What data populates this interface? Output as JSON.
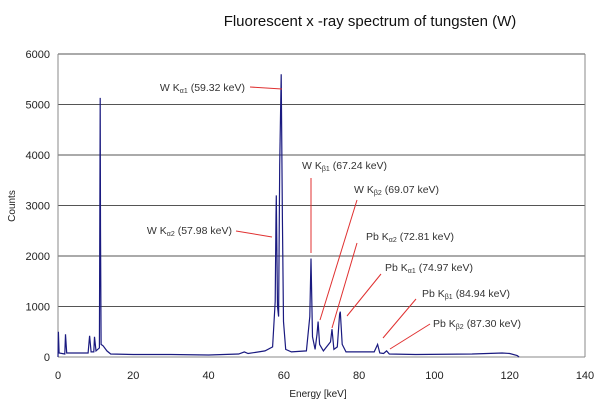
{
  "chart_data": {
    "type": "line",
    "title": "Fluorescent x -ray spectrum of tungsten (W)",
    "xlabel": "Energy [keV]",
    "ylabel": "Counts",
    "xlim": [
      0,
      140
    ],
    "ylim": [
      0,
      6000
    ],
    "xticks": [
      "0",
      "20",
      "40",
      "60",
      "80",
      "100",
      "120",
      "140"
    ],
    "yticks": [
      "0",
      "1000",
      "2000",
      "3000",
      "4000",
      "5000",
      "6000"
    ],
    "grid": "horizontal",
    "line_color": "#1a1a80",
    "annotation_color": "#e03030",
    "series": [
      {
        "x": [
          0,
          0.1,
          0.3,
          1.8,
          2.0,
          2.3,
          8.0,
          8.4,
          8.8,
          9.5,
          9.7,
          10.1,
          11.0,
          11.2,
          11.3,
          11.45,
          12,
          13,
          14,
          20,
          30,
          40,
          48,
          49.5,
          50.5,
          55,
          57,
          57.7,
          57.9,
          58.0,
          58.3,
          58.6,
          58.9,
          59.3,
          59.6,
          59.9,
          60.5,
          62,
          66,
          66.9,
          67.2,
          67.6,
          68.3,
          68.8,
          69.1,
          69.5,
          70.5,
          72.4,
          72.8,
          73.3,
          74.2,
          74.8,
          75.0,
          75.5,
          76.5,
          84,
          84.9,
          85.5,
          86.5,
          87.3,
          88,
          95,
          110,
          118,
          120,
          122,
          122.5
        ],
        "y": [
          0,
          500,
          80,
          60,
          450,
          80,
          80,
          420,
          100,
          100,
          400,
          120,
          180,
          5130,
          2550,
          250,
          220,
          120,
          60,
          50,
          50,
          40,
          60,
          100,
          70,
          120,
          200,
          1100,
          2800,
          3200,
          1000,
          800,
          3800,
          5600,
          2750,
          700,
          150,
          100,
          120,
          800,
          1950,
          400,
          150,
          450,
          700,
          250,
          120,
          300,
          550,
          150,
          200,
          850,
          900,
          250,
          100,
          100,
          250,
          80,
          70,
          120,
          60,
          50,
          60,
          80,
          70,
          30,
          0
        ]
      }
    ],
    "annotations": [
      {
        "element": "W K",
        "sub": "α1",
        "energy": "(59.32 keV)"
      },
      {
        "element": "W K",
        "sub": "α2",
        "energy": "(57.98 keV)"
      },
      {
        "element": "W K",
        "sub": "β1",
        "energy": "(67.24 keV)"
      },
      {
        "element": "W K",
        "sub": "β2",
        "energy": "(69.07 keV)"
      },
      {
        "element": "Pb K",
        "sub": "α2",
        "energy": "(72.81 keV)"
      },
      {
        "element": "Pb K",
        "sub": "α1",
        "energy": "(74.97 keV)"
      },
      {
        "element": "Pb K",
        "sub": "β1",
        "energy": "(84.94 keV)"
      },
      {
        "element": "Pb K",
        "sub": "β2",
        "energy": "(87.30 keV)"
      }
    ]
  }
}
